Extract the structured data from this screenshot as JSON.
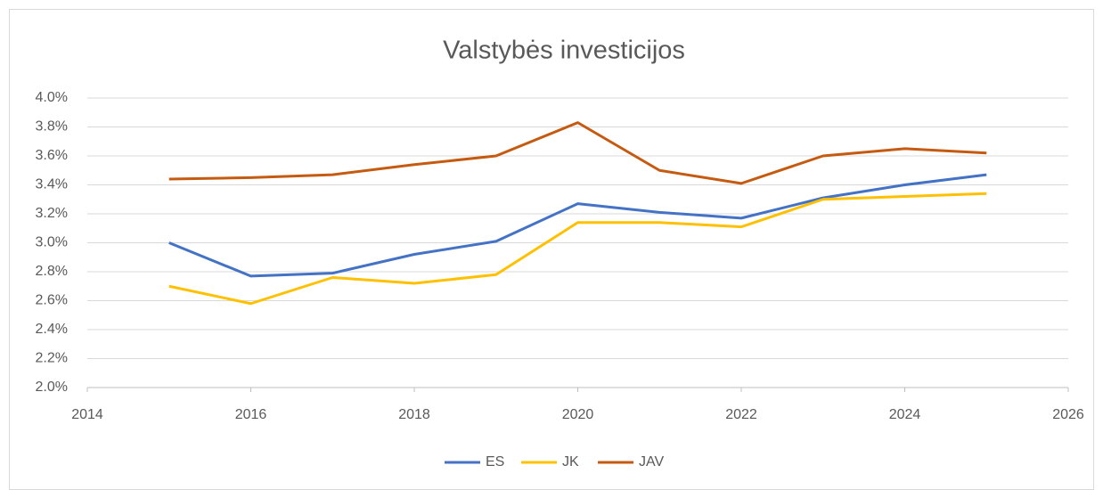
{
  "chart_data": {
    "type": "line",
    "title": "Valstybės investicijos",
    "x": [
      2015,
      2016,
      2017,
      2018,
      2019,
      2020,
      2021,
      2022,
      2023,
      2024,
      2025
    ],
    "series": [
      {
        "name": "ES",
        "color": "#4472c4",
        "values": [
          3.0,
          2.77,
          2.79,
          2.92,
          3.01,
          3.27,
          3.21,
          3.17,
          3.31,
          3.4,
          3.47
        ]
      },
      {
        "name": "JK",
        "color": "#ffc000",
        "values": [
          2.7,
          2.58,
          2.76,
          2.72,
          2.78,
          3.14,
          3.14,
          3.11,
          3.3,
          3.32,
          3.34
        ]
      },
      {
        "name": "JAV",
        "color": "#c55a11",
        "values": [
          3.44,
          3.45,
          3.47,
          3.54,
          3.6,
          3.83,
          3.5,
          3.41,
          3.6,
          3.65,
          3.62
        ]
      }
    ],
    "xlim": [
      2014,
      2026
    ],
    "xticks": [
      2014,
      2016,
      2018,
      2020,
      2022,
      2024,
      2026
    ],
    "ylim": [
      2.0,
      4.0
    ],
    "yticks": [
      {
        "value": 2.0,
        "label": "2.0%"
      },
      {
        "value": 2.2,
        "label": "2.2%"
      },
      {
        "value": 2.4,
        "label": "2.4%"
      },
      {
        "value": 2.6,
        "label": "2.6%"
      },
      {
        "value": 2.8,
        "label": "2.8%"
      },
      {
        "value": 3.0,
        "label": "3.0%"
      },
      {
        "value": 3.2,
        "label": "3.2%"
      },
      {
        "value": 3.4,
        "label": "3.4%"
      },
      {
        "value": 3.6,
        "label": "3.6%"
      },
      {
        "value": 3.8,
        "label": "3.8%"
      },
      {
        "value": 4.0,
        "label": "4.0%"
      }
    ],
    "grid": true,
    "legend": "bottom"
  }
}
